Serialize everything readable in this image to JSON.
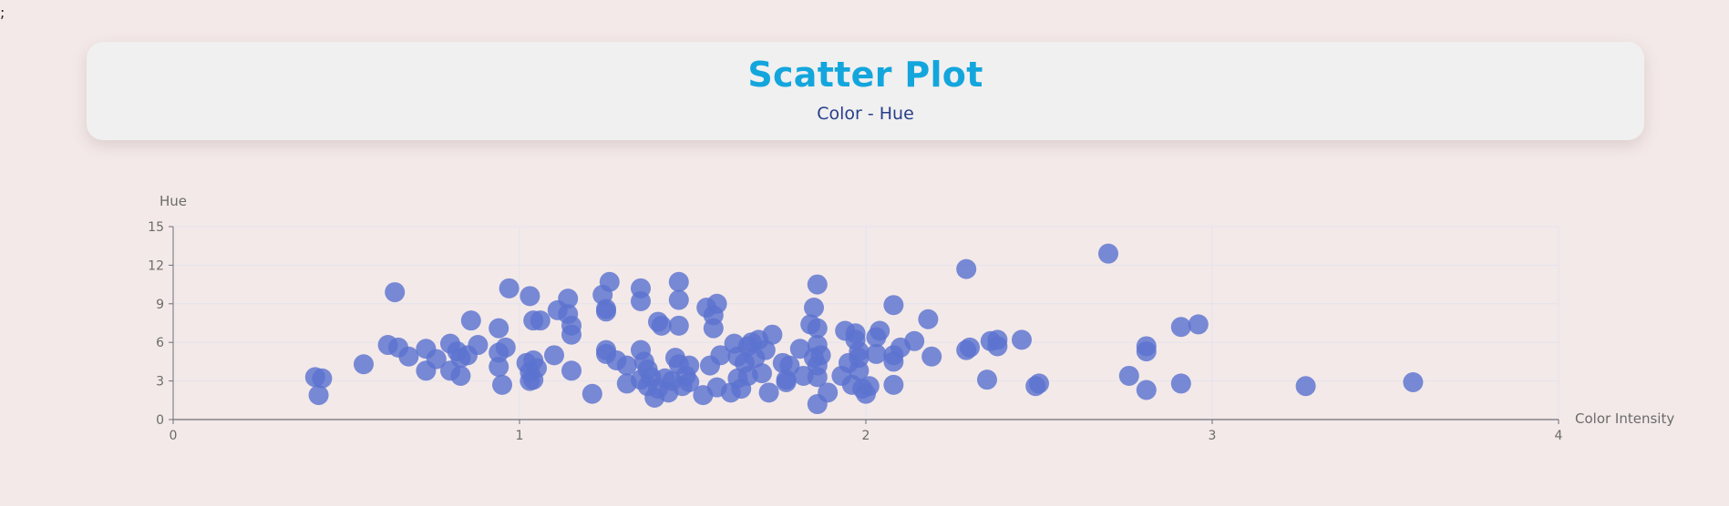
{
  "stray_text": ";",
  "header": {
    "title": "Scatter Plot",
    "subtitle": "Color - Hue"
  },
  "colors": {
    "title": "#13a6dd",
    "subtitle": "#283e8a",
    "point": "#5b73d0",
    "grid": "#e3e3ee",
    "axis": "#6e7079",
    "background": "#f3e9e8"
  },
  "chart_data": {
    "type": "scatter",
    "title": "",
    "xlabel": "Color Intensity",
    "ylabel": "Hue",
    "xlim": [
      0,
      4
    ],
    "ylim": [
      0,
      15
    ],
    "x_ticks": [
      0,
      1,
      2,
      3,
      4
    ],
    "y_ticks": [
      0,
      3,
      6,
      9,
      12,
      15
    ],
    "grid": true,
    "series": [
      {
        "points": [
          [
            0.41,
            3.3
          ],
          [
            0.43,
            3.2
          ],
          [
            0.42,
            1.9
          ],
          [
            0.55,
            4.3
          ],
          [
            0.62,
            5.8
          ],
          [
            0.64,
            9.9
          ],
          [
            0.65,
            5.6
          ],
          [
            0.68,
            4.9
          ],
          [
            0.73,
            5.5
          ],
          [
            0.73,
            3.8
          ],
          [
            0.76,
            4.7
          ],
          [
            0.8,
            5.9
          ],
          [
            0.8,
            3.8
          ],
          [
            0.82,
            5.3
          ],
          [
            0.83,
            4.8
          ],
          [
            0.83,
            3.4
          ],
          [
            0.85,
            5.0
          ],
          [
            0.86,
            7.7
          ],
          [
            0.88,
            5.8
          ],
          [
            0.94,
            7.1
          ],
          [
            0.94,
            5.2
          ],
          [
            0.94,
            4.1
          ],
          [
            0.95,
            2.7
          ],
          [
            0.96,
            5.6
          ],
          [
            0.97,
            10.2
          ],
          [
            1.02,
            4.4
          ],
          [
            1.03,
            9.6
          ],
          [
            1.03,
            3.7
          ],
          [
            1.03,
            3.0
          ],
          [
            1.04,
            4.6
          ],
          [
            1.04,
            3.1
          ],
          [
            1.05,
            4.0
          ],
          [
            1.04,
            7.7
          ],
          [
            1.06,
            7.7
          ],
          [
            1.1,
            5.0
          ],
          [
            1.11,
            8.5
          ],
          [
            1.14,
            9.4
          ],
          [
            1.14,
            8.2
          ],
          [
            1.15,
            7.3
          ],
          [
            1.15,
            6.6
          ],
          [
            1.15,
            3.8
          ],
          [
            1.21,
            2.0
          ],
          [
            1.24,
            9.7
          ],
          [
            1.25,
            8.6
          ],
          [
            1.25,
            8.4
          ],
          [
            1.26,
            10.7
          ],
          [
            1.25,
            5.4
          ],
          [
            1.25,
            5.1
          ],
          [
            1.28,
            4.6
          ],
          [
            1.31,
            4.2
          ],
          [
            1.31,
            2.8
          ],
          [
            1.35,
            10.2
          ],
          [
            1.35,
            9.2
          ],
          [
            1.35,
            5.4
          ],
          [
            1.35,
            3.1
          ],
          [
            1.36,
            4.5
          ],
          [
            1.37,
            3.9
          ],
          [
            1.37,
            2.6
          ],
          [
            1.38,
            3.3
          ],
          [
            1.39,
            1.7
          ],
          [
            1.4,
            7.6
          ],
          [
            1.4,
            2.4
          ],
          [
            1.41,
            7.3
          ],
          [
            1.42,
            3.2
          ],
          [
            1.43,
            2.1
          ],
          [
            1.44,
            3.0
          ],
          [
            1.45,
            4.8
          ],
          [
            1.46,
            10.7
          ],
          [
            1.46,
            9.3
          ],
          [
            1.46,
            7.3
          ],
          [
            1.46,
            4.3
          ],
          [
            1.47,
            2.6
          ],
          [
            1.48,
            3.4
          ],
          [
            1.49,
            4.2
          ],
          [
            1.49,
            2.9
          ],
          [
            1.53,
            1.9
          ],
          [
            1.54,
            8.7
          ],
          [
            1.55,
            4.2
          ],
          [
            1.56,
            8.1
          ],
          [
            1.56,
            7.1
          ],
          [
            1.57,
            9.0
          ],
          [
            1.57,
            2.5
          ],
          [
            1.58,
            5.0
          ],
          [
            1.61,
            2.1
          ],
          [
            1.62,
            5.9
          ],
          [
            1.63,
            4.9
          ],
          [
            1.63,
            3.2
          ],
          [
            1.64,
            2.4
          ],
          [
            1.65,
            4.4
          ],
          [
            1.66,
            5.7
          ],
          [
            1.66,
            3.4
          ],
          [
            1.67,
            6.0
          ],
          [
            1.68,
            4.8
          ],
          [
            1.69,
            6.2
          ],
          [
            1.7,
            3.6
          ],
          [
            1.71,
            5.4
          ],
          [
            1.72,
            2.1
          ],
          [
            1.73,
            6.6
          ],
          [
            1.76,
            4.4
          ],
          [
            1.77,
            3.1
          ],
          [
            1.77,
            2.9
          ],
          [
            1.78,
            4.2
          ],
          [
            1.81,
            5.5
          ],
          [
            1.82,
            3.4
          ],
          [
            1.84,
            7.4
          ],
          [
            1.85,
            4.8
          ],
          [
            1.85,
            8.7
          ],
          [
            1.86,
            10.5
          ],
          [
            1.86,
            7.1
          ],
          [
            1.86,
            5.8
          ],
          [
            1.86,
            4.2
          ],
          [
            1.86,
            3.3
          ],
          [
            1.86,
            1.2
          ],
          [
            1.87,
            5.0
          ],
          [
            1.89,
            2.1
          ],
          [
            1.93,
            3.4
          ],
          [
            1.94,
            6.9
          ],
          [
            1.95,
            4.4
          ],
          [
            1.96,
            2.7
          ],
          [
            1.97,
            6.7
          ],
          [
            1.97,
            6.2
          ],
          [
            1.98,
            5.3
          ],
          [
            1.98,
            4.8
          ],
          [
            1.98,
            3.8
          ],
          [
            1.99,
            2.4
          ],
          [
            2.0,
            2.0
          ],
          [
            2.01,
            2.6
          ],
          [
            2.03,
            5.1
          ],
          [
            2.03,
            6.4
          ],
          [
            2.04,
            6.9
          ],
          [
            2.08,
            8.9
          ],
          [
            2.08,
            5.0
          ],
          [
            2.08,
            4.5
          ],
          [
            2.08,
            2.7
          ],
          [
            2.1,
            5.6
          ],
          [
            2.14,
            6.1
          ],
          [
            2.18,
            7.8
          ],
          [
            2.19,
            4.9
          ],
          [
            2.29,
            11.7
          ],
          [
            2.29,
            5.4
          ],
          [
            2.3,
            5.6
          ],
          [
            2.35,
            3.1
          ],
          [
            2.36,
            6.1
          ],
          [
            2.38,
            6.2
          ],
          [
            2.38,
            5.7
          ],
          [
            2.45,
            6.2
          ],
          [
            2.49,
            2.6
          ],
          [
            2.5,
            2.8
          ],
          [
            2.7,
            12.9
          ],
          [
            2.76,
            3.4
          ],
          [
            2.81,
            5.7
          ],
          [
            2.81,
            5.3
          ],
          [
            2.81,
            2.3
          ],
          [
            2.91,
            7.2
          ],
          [
            2.91,
            2.8
          ],
          [
            2.96,
            7.4
          ],
          [
            3.27,
            2.6
          ],
          [
            3.58,
            2.9
          ]
        ]
      }
    ]
  }
}
